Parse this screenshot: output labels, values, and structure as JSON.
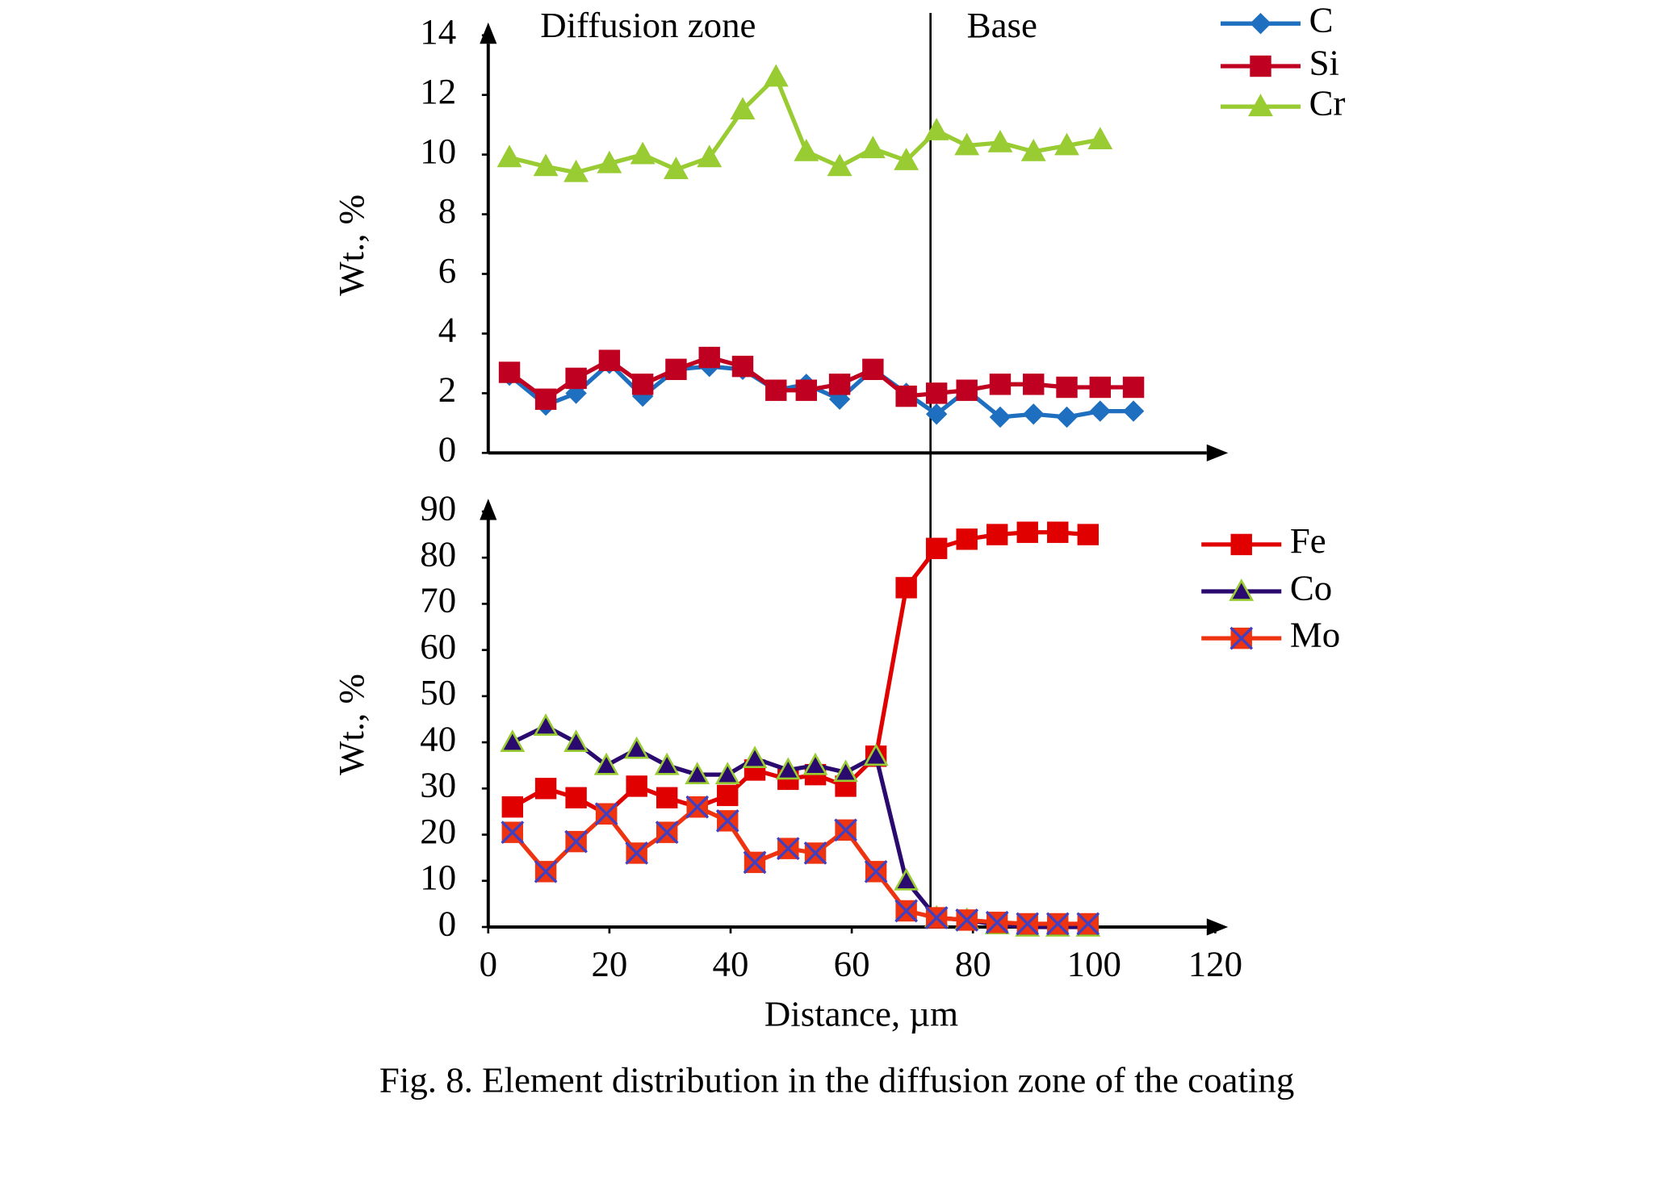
{
  "caption": "Fig. 8. Element distribution in the diffusion zone of the coating",
  "chart_data": [
    {
      "type": "line",
      "ylabel": "Wt., %",
      "annotations": [
        {
          "text": "Diffusion zone"
        },
        {
          "text": "Base"
        }
      ],
      "boundary_x": 73,
      "xlim": [
        0,
        120
      ],
      "ylim": [
        0,
        14
      ],
      "yticks": [
        0,
        2,
        4,
        6,
        8,
        10,
        12,
        14
      ],
      "legend": "right",
      "x": [
        3.5,
        9.5,
        14.5,
        20,
        25.5,
        31,
        36.5,
        42,
        47.5,
        52.5,
        58,
        63.5,
        69,
        74,
        79,
        84.5,
        90,
        95.5,
        101,
        106.5
      ],
      "series": [
        {
          "name": "C",
          "color": "#1f6fc0",
          "marker": "diamond",
          "values": [
            2.6,
            1.6,
            2.0,
            3.0,
            1.9,
            2.8,
            2.9,
            2.8,
            2.1,
            2.3,
            1.8,
            2.8,
            2.0,
            1.3,
            2.1,
            1.2,
            1.3,
            1.2,
            1.4,
            1.4
          ]
        },
        {
          "name": "Si",
          "color": "#c00020",
          "marker": "square",
          "values": [
            2.7,
            1.8,
            2.5,
            3.1,
            2.3,
            2.8,
            3.2,
            2.9,
            2.1,
            2.1,
            2.3,
            2.8,
            1.9,
            2.0,
            2.1,
            2.3,
            2.3,
            2.2,
            2.2,
            2.2
          ]
        },
        {
          "name": "Cr",
          "color": "#99cc33",
          "marker": "triangle",
          "values": [
            9.9,
            9.6,
            9.4,
            9.7,
            10.0,
            9.5,
            9.9,
            11.5,
            12.6,
            10.1,
            9.6,
            10.2,
            9.8,
            10.8,
            10.3,
            10.4,
            10.1,
            10.3,
            10.5,
            null
          ]
        }
      ]
    },
    {
      "type": "line",
      "ylabel": "Wt., %",
      "xlabel": "Distance, µm",
      "xlim": [
        0,
        120
      ],
      "xticks": [
        0,
        20,
        40,
        60,
        80,
        100,
        120
      ],
      "ylim": [
        0,
        90
      ],
      "yticks": [
        0,
        10,
        20,
        30,
        40,
        50,
        60,
        70,
        80,
        90
      ],
      "legend": "right",
      "x": [
        4,
        9.5,
        14.5,
        19.5,
        24.5,
        29.5,
        34.5,
        39.5,
        44,
        49.5,
        54,
        59,
        64,
        69,
        74,
        79,
        84,
        89,
        94,
        99
      ],
      "series": [
        {
          "name": "Fe",
          "color": "#e00000",
          "marker": "square",
          "values": [
            26,
            30,
            28,
            24.5,
            30.5,
            28,
            26,
            28.5,
            34,
            32,
            33,
            30.5,
            37,
            73.5,
            82,
            84,
            85,
            85.5,
            85.5,
            85
          ]
        },
        {
          "name": "Co",
          "color": "#2a0a6e",
          "marker": "triangle",
          "values": [
            40,
            43.5,
            40,
            35,
            38.5,
            35,
            33,
            33,
            36.5,
            34,
            35,
            33.5,
            37,
            10,
            2,
            1.5,
            0.5,
            0,
            0,
            0
          ]
        },
        {
          "name": "Mo",
          "color": "#ee3311",
          "marker": "xsquare",
          "values": [
            20.5,
            12,
            18.5,
            24.5,
            16,
            20.5,
            26,
            23,
            14,
            17,
            16,
            21,
            12,
            3.5,
            2,
            1.5,
            1,
            0.7,
            0.7,
            0.7
          ]
        }
      ]
    }
  ]
}
